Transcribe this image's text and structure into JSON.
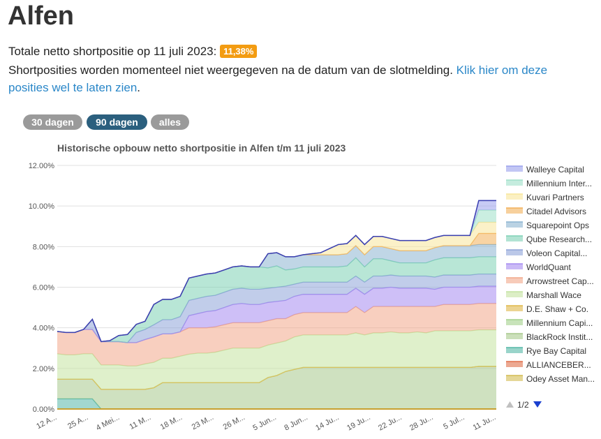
{
  "page": {
    "title": "Alfen",
    "total_label": "Totale netto shortpositie op 11 juli 2023:",
    "total_value": "11,38%",
    "notice_text": "Shortposities worden momenteel niet weergegeven na de datum van de slotmelding.",
    "notice_link": "Klik hier om deze posities wel te laten zien",
    "notice_end": "."
  },
  "range_buttons": [
    "30 dagen",
    "90 dagen",
    "alles"
  ],
  "legend_pager": {
    "text": "1/2"
  },
  "colors": {
    "badge": "#f39c12",
    "active_button": "#2b5f7e",
    "inactive_button": "#9a9a9a",
    "link": "#2a87c8"
  },
  "chart_data": {
    "type": "area",
    "stacked": true,
    "title": "Historische opbouw netto shortpositie in Alfen t/m 11 juli 2023",
    "ylim": [
      0,
      12
    ],
    "y_ticks": [
      "0.00%",
      "2.00%",
      "4.00%",
      "6.00%",
      "8.00%",
      "10.00%",
      "12.00%"
    ],
    "x_ticks": [
      "12 A...",
      "25 A...",
      "4 Mei...",
      "11 M...",
      "18 M...",
      "23 M...",
      "26 M...",
      "5 Jun...",
      "8 Jun...",
      "14 Ju...",
      "19 Ju...",
      "22 Ju...",
      "28 Ju...",
      "5 Jul...",
      "11 Ju..."
    ],
    "grid": true,
    "legend_position": "right",
    "x": [
      0,
      1,
      2,
      3,
      4,
      5,
      6,
      7,
      8,
      9,
      10,
      11,
      12,
      13,
      14,
      15,
      16,
      17,
      18,
      19,
      20,
      21,
      22,
      23,
      24,
      25,
      26,
      27,
      28,
      29,
      30,
      31,
      32,
      33,
      34,
      35,
      36,
      37,
      38,
      39,
      40,
      41,
      42,
      43,
      44,
      45,
      46,
      47,
      48,
      49,
      50
    ],
    "series": [
      {
        "name": "Odey Asset Man...",
        "color": "#d4bc52",
        "values": [
          0,
          0,
          0,
          0,
          0,
          0,
          0,
          0,
          0,
          0,
          0,
          0,
          0,
          0,
          0,
          0,
          0,
          0,
          0,
          0,
          0,
          0,
          0,
          0,
          0,
          0,
          0,
          0,
          0,
          0,
          0,
          0,
          0,
          0,
          0,
          0,
          0,
          0,
          0,
          0,
          0,
          0,
          0,
          0,
          0,
          0,
          0,
          0,
          0,
          0,
          0
        ]
      },
      {
        "name": "ALLIANCEBER...",
        "color": "#e06f4a",
        "values": [
          0,
          0,
          0,
          0,
          0,
          0,
          0,
          0,
          0,
          0,
          0,
          0,
          0,
          0,
          0,
          0,
          0,
          0,
          0,
          0,
          0,
          0,
          0,
          0,
          0,
          0,
          0,
          0,
          0,
          0,
          0,
          0,
          0,
          0,
          0,
          0,
          0,
          0,
          0,
          0,
          0,
          0,
          0,
          0,
          0,
          0,
          0,
          0,
          0,
          0,
          0
        ]
      },
      {
        "name": "Rye Bay Capital",
        "color": "#55b7a7",
        "values": [
          0.5,
          0.5,
          0.5,
          0.5,
          0.5,
          0,
          0,
          0,
          0,
          0,
          0,
          0,
          0,
          0,
          0,
          0,
          0,
          0,
          0,
          0,
          0,
          0,
          0,
          0,
          0,
          0,
          0,
          0,
          0,
          0,
          0,
          0,
          0,
          0,
          0,
          0,
          0,
          0,
          0,
          0,
          0,
          0,
          0,
          0,
          0,
          0,
          0,
          0,
          0,
          0,
          0
        ]
      },
      {
        "name": "BlackRock Instit...",
        "color": "#a8c98c",
        "values": [
          0.97,
          0.97,
          0.97,
          0.97,
          0.97,
          0.97,
          0.97,
          0.97,
          0.97,
          0.97,
          0.97,
          1.05,
          1.3,
          1.3,
          1.3,
          1.3,
          1.3,
          1.3,
          1.3,
          1.3,
          1.3,
          1.3,
          1.3,
          1.3,
          1.55,
          1.65,
          1.85,
          1.95,
          2.05,
          2.05,
          2.05,
          2.05,
          2.05,
          2.05,
          2.05,
          2.05,
          2.05,
          2.05,
          2.05,
          2.05,
          2.05,
          2.05,
          2.05,
          2.05,
          2.05,
          2.05,
          2.05,
          2.05,
          2.1,
          2.1,
          2.1
        ]
      },
      {
        "name": "Millennium Capi...",
        "color": "#a3d18c",
        "values": [
          0,
          0,
          0,
          0,
          0,
          0,
          0,
          0,
          0,
          0,
          0,
          0,
          0,
          0,
          0,
          0,
          0,
          0,
          0,
          0,
          0,
          0,
          0,
          0,
          0,
          0,
          0,
          0,
          0,
          0,
          0,
          0,
          0,
          0,
          0,
          0,
          0,
          0,
          0,
          0,
          0,
          0,
          0,
          0,
          0,
          0,
          0,
          0,
          0,
          0,
          0
        ]
      },
      {
        "name": "D.E. Shaw + Co.",
        "color": "#e0b84a",
        "values": [
          0,
          0,
          0,
          0,
          0,
          0,
          0,
          0,
          0,
          0,
          0,
          0,
          0,
          0,
          0,
          0,
          0,
          0,
          0,
          0,
          0,
          0,
          0,
          0,
          0,
          0,
          0,
          0,
          0,
          0,
          0,
          0,
          0,
          0,
          0,
          0,
          0,
          0,
          0,
          0,
          0,
          0,
          0,
          0,
          0,
          0,
          0,
          0,
          0,
          0,
          0
        ]
      },
      {
        "name": "Marshall Wace",
        "color": "#c4e3a0",
        "values": [
          1.25,
          1.2,
          1.2,
          1.25,
          1.25,
          1.2,
          1.2,
          1.2,
          1.15,
          1.15,
          1.25,
          1.25,
          1.2,
          1.2,
          1.3,
          1.4,
          1.45,
          1.45,
          1.5,
          1.6,
          1.7,
          1.7,
          1.7,
          1.7,
          1.6,
          1.6,
          1.5,
          1.6,
          1.6,
          1.6,
          1.6,
          1.6,
          1.6,
          1.6,
          1.7,
          1.6,
          1.7,
          1.7,
          1.75,
          1.7,
          1.7,
          1.75,
          1.7,
          1.8,
          1.8,
          1.8,
          1.8,
          1.8,
          1.8,
          1.8,
          1.8
        ]
      },
      {
        "name": "Arrowstreet Cap...",
        "color": "#f2a88a",
        "values": [
          1.1,
          1.1,
          1.1,
          1.2,
          1.2,
          1.15,
          1.15,
          1.15,
          1.15,
          1.15,
          1.2,
          1.25,
          1.2,
          1.2,
          1.2,
          1.3,
          1.25,
          1.25,
          1.25,
          1.25,
          1.25,
          1.25,
          1.25,
          1.25,
          1.2,
          1.2,
          1.1,
          1.1,
          1.1,
          1.1,
          1.1,
          1.1,
          1.1,
          1.1,
          1.3,
          1.1,
          1.3,
          1.3,
          1.25,
          1.3,
          1.3,
          1.25,
          1.3,
          1.2,
          1.3,
          1.3,
          1.3,
          1.3,
          1.3,
          1.3,
          1.3
        ]
      },
      {
        "name": "WorldQuant",
        "color": "#a68bf0",
        "values": [
          0,
          0,
          0,
          0,
          0,
          0,
          0,
          0,
          0,
          0,
          0,
          0,
          0,
          0,
          0,
          0.6,
          0.7,
          0.8,
          0.8,
          0.85,
          0.9,
          0.95,
          0.9,
          0.9,
          0.9,
          0.85,
          0.9,
          0.9,
          0.9,
          0.9,
          0.9,
          0.9,
          0.9,
          0.9,
          0.9,
          0.9,
          0.9,
          0.9,
          0.95,
          0.9,
          0.9,
          0.9,
          0.9,
          0.85,
          0.85,
          0.85,
          0.85,
          0.85,
          0.85,
          0.85,
          0.85
        ]
      },
      {
        "name": "Voleon Capital...",
        "color": "#8ea4d8",
        "values": [
          0,
          0,
          0,
          0,
          0.5,
          0,
          0,
          0,
          0,
          0.5,
          0.5,
          0.6,
          0.7,
          0.7,
          0.75,
          0.75,
          0.75,
          0.75,
          0.75,
          0.75,
          0.75,
          0.75,
          0.75,
          0.75,
          0.7,
          0.7,
          0.7,
          0.6,
          0.6,
          0.6,
          0.6,
          0.6,
          0.6,
          0.6,
          0.6,
          0.6,
          0.6,
          0.6,
          0.6,
          0.6,
          0.6,
          0.6,
          0.6,
          0.6,
          0.6,
          0.6,
          0.6,
          0.6,
          0.6,
          0.6,
          0.6
        ]
      },
      {
        "name": "Qube Research...",
        "color": "#7ed1b5",
        "values": [
          0,
          0,
          0,
          0,
          0,
          0,
          0.05,
          0.3,
          0.4,
          0.4,
          0.4,
          1.0,
          1.0,
          1.0,
          1.0,
          1.1,
          1.1,
          1.1,
          1.1,
          1.1,
          1.1,
          1.1,
          1.1,
          1.1,
          1.0,
          1.05,
          0.8,
          0.75,
          0.75,
          0.75,
          0.75,
          0.75,
          0.75,
          0.8,
          0.9,
          0.75,
          0.85,
          0.85,
          0.7,
          0.65,
          0.65,
          0.65,
          0.65,
          0.85,
          0.85,
          0.85,
          0.85,
          0.85,
          0.85,
          0.85,
          0.85
        ]
      },
      {
        "name": "Squarepoint Ops",
        "color": "#8cb4d1",
        "values": [
          0,
          0,
          0,
          0,
          0,
          0,
          0,
          0,
          0,
          0,
          0,
          0,
          0,
          0,
          0,
          0,
          0,
          0,
          0,
          0,
          0,
          0,
          0,
          0,
          0.7,
          0.65,
          0.65,
          0.6,
          0.6,
          0.6,
          0.6,
          0.6,
          0.6,
          0.6,
          0.6,
          0.6,
          0.6,
          0.6,
          0.6,
          0.6,
          0.6,
          0.6,
          0.6,
          0.6,
          0.6,
          0.6,
          0.6,
          0.6,
          0.6,
          0.6,
          0.6
        ]
      },
      {
        "name": "Citadel Advisors",
        "color": "#f2b05a",
        "values": [
          0,
          0,
          0,
          0,
          0,
          0,
          0,
          0,
          0,
          0,
          0,
          0,
          0,
          0,
          0,
          0,
          0,
          0,
          0,
          0,
          0,
          0,
          0,
          0,
          0,
          0,
          0,
          0,
          0,
          0,
          0,
          0,
          0,
          0,
          0,
          0,
          0,
          0,
          0,
          0,
          0,
          0,
          0,
          0,
          0,
          0,
          0,
          0,
          0.55,
          0.55,
          0.55
        ]
      },
      {
        "name": "Kuvari Partners",
        "color": "#f8e69a",
        "values": [
          0,
          0,
          0,
          0,
          0,
          0,
          0,
          0,
          0,
          0,
          0,
          0,
          0,
          0,
          0,
          0,
          0,
          0,
          0,
          0,
          0,
          0,
          0,
          0,
          0,
          0,
          0,
          0,
          0,
          0.05,
          0.1,
          0.3,
          0.5,
          0.5,
          0.5,
          0.5,
          0.5,
          0.5,
          0.5,
          0.5,
          0.5,
          0.5,
          0.5,
          0.5,
          0.5,
          0.5,
          0.5,
          0.5,
          0.55,
          0.55,
          0.55
        ]
      },
      {
        "name": "Millennium Inter...",
        "color": "#9fe0c8",
        "values": [
          0,
          0,
          0,
          0,
          0,
          0,
          0,
          0,
          0,
          0,
          0,
          0,
          0,
          0,
          0,
          0,
          0,
          0,
          0,
          0,
          0,
          0,
          0,
          0,
          0,
          0,
          0,
          0,
          0,
          0,
          0,
          0,
          0,
          0,
          0,
          0,
          0,
          0,
          0,
          0,
          0,
          0,
          0,
          0,
          0,
          0,
          0,
          0,
          0.6,
          0.6,
          0.6
        ]
      },
      {
        "name": "Walleye Capital",
        "color": "#9aa0ec",
        "values": [
          0,
          0,
          0,
          0,
          0,
          0,
          0,
          0,
          0,
          0,
          0,
          0,
          0,
          0,
          0,
          0,
          0,
          0,
          0,
          0,
          0,
          0,
          0,
          0,
          0,
          0,
          0,
          0,
          0,
          0,
          0,
          0,
          0,
          0,
          0,
          0,
          0,
          0,
          0,
          0,
          0,
          0,
          0,
          0,
          0,
          0,
          0,
          0,
          0.47,
          0.47,
          0.47
        ]
      }
    ]
  }
}
